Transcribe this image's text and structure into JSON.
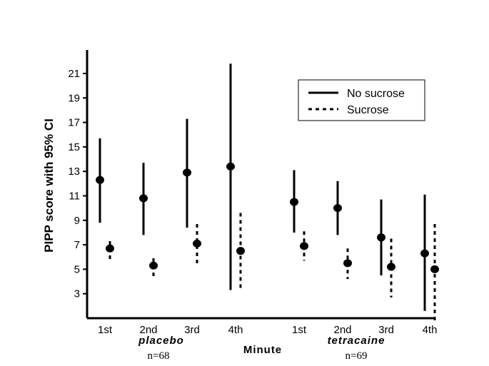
{
  "chart_data": {
    "type": "scatter",
    "ylabel": "PIPP score with 95% CI",
    "xlabel": "Minute",
    "ylim": [
      1,
      22
    ],
    "y_ticks": [
      3,
      5,
      7,
      9,
      11,
      13,
      15,
      17,
      19,
      21
    ],
    "grid": false,
    "legend_position": "top-right",
    "groups": [
      {
        "name": "placebo",
        "n_label": "n=68",
        "categories": [
          "1st",
          "2nd",
          "3rd",
          "4th"
        ]
      },
      {
        "name": "tetracaine",
        "n_label": "n=69",
        "categories": [
          "1st",
          "2nd",
          "3rd",
          "4th"
        ]
      }
    ],
    "series": [
      {
        "name": "No sucrose",
        "line_style": "solid",
        "points": [
          {
            "group": "placebo",
            "category": "1st",
            "mean": 12.3,
            "ci": [
              8.8,
              15.7
            ]
          },
          {
            "group": "placebo",
            "category": "2nd",
            "mean": 10.8,
            "ci": [
              7.8,
              13.7
            ]
          },
          {
            "group": "placebo",
            "category": "3rd",
            "mean": 12.9,
            "ci": [
              8.4,
              17.3
            ]
          },
          {
            "group": "placebo",
            "category": "4th",
            "mean": 13.4,
            "ci": [
              3.3,
              21.8
            ]
          },
          {
            "group": "tetracaine",
            "category": "1st",
            "mean": 10.5,
            "ci": [
              8.0,
              13.1
            ]
          },
          {
            "group": "tetracaine",
            "category": "2nd",
            "mean": 10.0,
            "ci": [
              7.8,
              12.2
            ]
          },
          {
            "group": "tetracaine",
            "category": "3rd",
            "mean": 7.6,
            "ci": [
              4.5,
              10.7
            ]
          },
          {
            "group": "tetracaine",
            "category": "4th",
            "mean": 6.3,
            "ci": [
              1.6,
              11.1
            ]
          }
        ]
      },
      {
        "name": "Sucrose",
        "line_style": "dotted",
        "points": [
          {
            "group": "placebo",
            "category": "1st",
            "mean": 6.7,
            "ci": [
              5.6,
              7.3
            ]
          },
          {
            "group": "placebo",
            "category": "2nd",
            "mean": 5.3,
            "ci": [
              4.2,
              5.9
            ]
          },
          {
            "group": "placebo",
            "category": "3rd",
            "mean": 7.1,
            "ci": [
              5.4,
              8.7
            ]
          },
          {
            "group": "placebo",
            "category": "4th",
            "mean": 6.5,
            "ci": [
              3.3,
              9.6
            ]
          },
          {
            "group": "tetracaine",
            "category": "1st",
            "mean": 6.9,
            "ci": [
              5.7,
              8.1
            ]
          },
          {
            "group": "tetracaine",
            "category": "2nd",
            "mean": 5.5,
            "ci": [
              4.2,
              6.7
            ]
          },
          {
            "group": "tetracaine",
            "category": "3rd",
            "mean": 5.2,
            "ci": [
              2.7,
              7.5
            ]
          },
          {
            "group": "tetracaine",
            "category": "4th",
            "mean": 5.0,
            "ci": [
              0.8,
              8.7
            ]
          }
        ]
      }
    ]
  }
}
